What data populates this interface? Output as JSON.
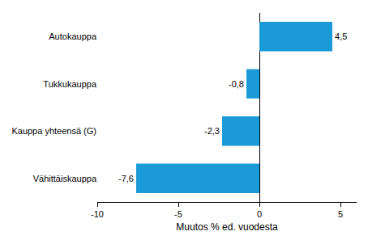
{
  "chart_data": {
    "type": "bar",
    "orientation": "horizontal",
    "categories": [
      "Autokauppa",
      "Tukkukauppa",
      "Kauppa yhteensä (G)",
      "Vähittäiskauppa"
    ],
    "values": [
      4.5,
      -0.8,
      -2.3,
      -7.6
    ],
    "value_labels": [
      "4,5",
      "-0,8",
      "-2,3",
      "-7,6"
    ],
    "data_labels": true,
    "color": "#1a9bd7",
    "x_label": "Muutos % ed. vuodesta",
    "xlim": [
      -10,
      6
    ],
    "xticks": [
      -10,
      -5,
      0,
      5
    ],
    "grid": false
  }
}
